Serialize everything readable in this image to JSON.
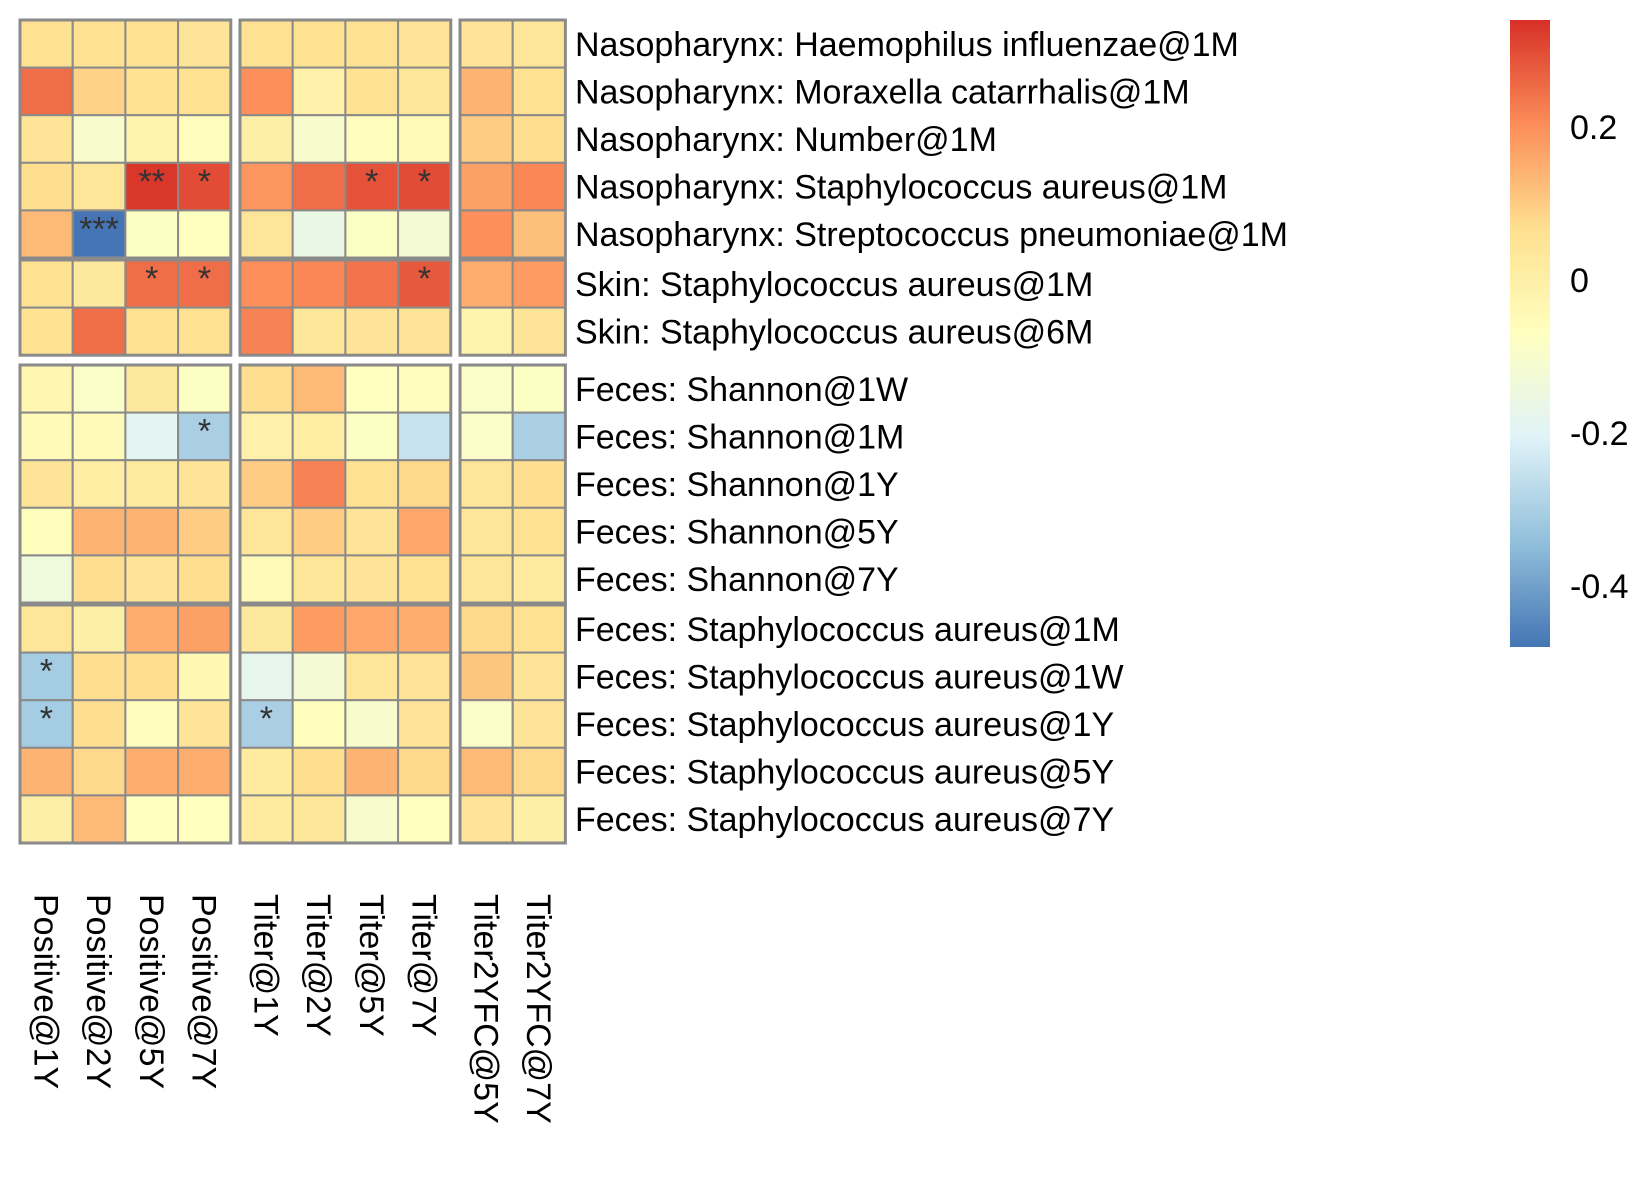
{
  "chart_data": {
    "type": "heatmap",
    "column_groups": [
      [
        "Positive@1Y",
        "Positive@2Y",
        "Positive@5Y",
        "Positive@7Y"
      ],
      [
        "Titer@1Y",
        "Titer@2Y",
        "Titer@5Y",
        "Titer@7Y"
      ],
      [
        "Titer2YFC@5Y",
        "Titer2YFC@7Y"
      ]
    ],
    "row_groups": [
      [
        "Nasopharynx: Haemophilus influenzae@1M",
        "Nasopharynx: Moraxella catarrhalis@1M",
        "Nasopharynx: Number@1M",
        "Nasopharynx: Staphylococcus aureus@1M",
        "Nasopharynx: Streptococcus pneumoniae@1M"
      ],
      [
        "Skin: Staphylococcus aureus@1M",
        "Skin: Staphylococcus aureus@6M"
      ],
      [
        "Feces: Shannon@1W",
        "Feces: Shannon@1M",
        "Feces: Shannon@1Y",
        "Feces: Shannon@5Y",
        "Feces: Shannon@7Y"
      ],
      [
        "Feces: Staphylococcus aureus@1M",
        "Feces: Staphylococcus aureus@1W",
        "Feces: Staphylococcus aureus@1Y",
        "Feces: Staphylococcus aureus@5Y",
        "Feces: Staphylococcus aureus@7Y"
      ]
    ],
    "values": [
      [
        0.06,
        0.06,
        0.06,
        0.05,
        0.06,
        0.06,
        0.06,
        0.05,
        0.05,
        0.04
      ],
      [
        0.25,
        0.09,
        0.06,
        0.06,
        0.2,
        -0.01,
        0.06,
        0.04,
        0.14,
        0.06
      ],
      [
        0.05,
        -0.1,
        -0.02,
        -0.06,
        0.0,
        -0.1,
        -0.06,
        -0.05,
        0.1,
        0.07
      ],
      [
        0.07,
        0.04,
        0.33,
        0.3,
        0.19,
        0.25,
        0.29,
        0.3,
        0.17,
        0.21
      ],
      [
        0.13,
        -0.48,
        -0.08,
        -0.07,
        0.04,
        -0.16,
        -0.08,
        -0.12,
        0.2,
        0.12
      ],
      [
        0.06,
        0.03,
        0.25,
        0.25,
        0.2,
        0.21,
        0.24,
        0.28,
        0.15,
        0.18
      ],
      [
        0.06,
        0.25,
        0.06,
        0.06,
        0.22,
        0.04,
        0.05,
        0.05,
        -0.02,
        0.05
      ],
      [
        -0.03,
        -0.09,
        0.03,
        -0.08,
        0.07,
        0.13,
        -0.07,
        -0.06,
        -0.09,
        -0.08
      ],
      [
        -0.05,
        -0.05,
        -0.19,
        -0.3,
        -0.01,
        0.01,
        -0.08,
        -0.25,
        -0.09,
        -0.3
      ],
      [
        0.05,
        0.01,
        0.02,
        0.05,
        0.1,
        0.22,
        0.06,
        0.08,
        0.04,
        0.07
      ],
      [
        -0.06,
        0.14,
        0.14,
        0.1,
        0.04,
        0.1,
        0.05,
        0.16,
        0.04,
        0.06
      ],
      [
        -0.14,
        0.07,
        0.05,
        0.07,
        -0.05,
        0.04,
        0.05,
        0.06,
        0.04,
        0.02
      ],
      [
        0.04,
        0.0,
        0.15,
        0.17,
        0.03,
        0.18,
        0.16,
        0.15,
        0.08,
        0.06
      ],
      [
        -0.31,
        0.07,
        0.07,
        -0.04,
        -0.18,
        -0.12,
        0.04,
        0.05,
        0.11,
        0.05
      ],
      [
        -0.31,
        0.07,
        -0.06,
        0.05,
        -0.3,
        -0.06,
        -0.1,
        0.05,
        -0.09,
        0.05
      ],
      [
        0.14,
        0.08,
        0.15,
        0.15,
        0.02,
        0.07,
        0.14,
        0.08,
        0.13,
        0.08
      ],
      [
        0.0,
        0.13,
        -0.07,
        -0.07,
        0.02,
        0.04,
        -0.1,
        -0.07,
        0.05,
        0.0
      ]
    ],
    "significance": [
      [
        "",
        "",
        "",
        "",
        "",
        "",
        "",
        "",
        "",
        ""
      ],
      [
        "",
        "",
        "",
        "",
        "",
        "",
        "",
        "",
        "",
        ""
      ],
      [
        "",
        "",
        "",
        "",
        "",
        "",
        "",
        "",
        "",
        ""
      ],
      [
        "",
        "",
        "**",
        "*",
        "",
        "",
        "*",
        "*",
        "",
        ""
      ],
      [
        "",
        "***",
        "",
        "",
        "",
        "",
        "",
        "",
        "",
        ""
      ],
      [
        "",
        "",
        "*",
        "*",
        "",
        "",
        "",
        "*",
        "",
        ""
      ],
      [
        "",
        "",
        "",
        "",
        "",
        "",
        "",
        "",
        "",
        ""
      ],
      [
        "",
        "",
        "",
        "",
        "",
        "",
        "",
        "",
        "",
        ""
      ],
      [
        "",
        "",
        "",
        "*",
        "",
        "",
        "",
        "",
        "",
        ""
      ],
      [
        "",
        "",
        "",
        "",
        "",
        "",
        "",
        "",
        "",
        ""
      ],
      [
        "",
        "",
        "",
        "",
        "",
        "",
        "",
        "",
        "",
        ""
      ],
      [
        "",
        "",
        "",
        "",
        "",
        "",
        "",
        "",
        "",
        ""
      ],
      [
        "",
        "",
        "",
        "",
        "",
        "",
        "",
        "",
        "",
        ""
      ],
      [
        "*",
        "",
        "",
        "",
        "",
        "",
        "",
        "",
        "",
        ""
      ],
      [
        "*",
        "",
        "",
        "",
        "*",
        "",
        "",
        "",
        "",
        ""
      ],
      [
        "",
        "",
        "",
        "",
        "",
        "",
        "",
        "",
        "",
        ""
      ],
      [
        "",
        "",
        "",
        "",
        "",
        "",
        "",
        "",
        "",
        ""
      ]
    ],
    "color_range": [
      -0.48,
      0.34
    ],
    "colorbar_ticks": [
      {
        "value": 0.2,
        "label": "0.2"
      },
      {
        "value": 0,
        "label": "0"
      },
      {
        "value": -0.2,
        "label": "-0.2"
      },
      {
        "value": -0.4,
        "label": "-0.4"
      }
    ],
    "palette": [
      "#d73027",
      "#fc8d59",
      "#fee090",
      "#ffffbf",
      "#e0f3f8",
      "#91bfdb",
      "#4575b4"
    ],
    "cell_border_color": "#8a8a8a",
    "title": "",
    "xlabel": "",
    "ylabel": ""
  }
}
